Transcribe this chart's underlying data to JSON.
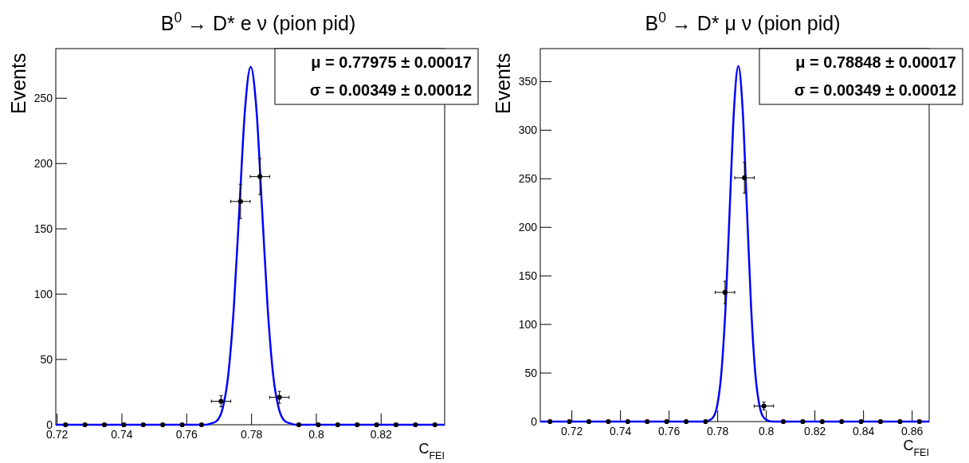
{
  "chart_data": [
    {
      "type": "scatter",
      "title": "B$^{0}$ → D* e ν (pion pid)",
      "xlabel": "C$_{FEI}$",
      "ylabel": "Events",
      "xlim": [
        0.7196,
        0.8396
      ],
      "ylim": [
        0,
        288
      ],
      "xticks": [
        0.72,
        0.74,
        0.76,
        0.78,
        {
          "value": 0.8,
          "label": "0.8"
        },
        0.82
      ],
      "yticks": [
        0,
        50,
        100,
        150,
        200,
        250
      ],
      "grid": false,
      "marker": "circle",
      "annotations": [
        "μ =  0.77975 ± 0.00017",
        "σ =  0.00349 ± 0.00012"
      ],
      "series": [
        {
          "color": "#000000",
          "x": [
            0.7226,
            0.7286,
            0.7346,
            0.7406,
            0.7466,
            0.7526,
            0.7586,
            0.7646,
            0.7706,
            0.7766,
            0.7826,
            0.7886,
            0.7946,
            0.8006,
            0.8066,
            0.8126,
            0.8186,
            0.8246,
            0.8306,
            0.8366
          ],
          "values": [
            0,
            0,
            0,
            0,
            0,
            0,
            0,
            0,
            18,
            171,
            190,
            21,
            0,
            0,
            0,
            0,
            0,
            0,
            0,
            0
          ],
          "errors": [
            null,
            null,
            null,
            null,
            null,
            null,
            null,
            null,
            4.2,
            13.1,
            13.8,
            4.6,
            null,
            null,
            null,
            null,
            null,
            null,
            null,
            null
          ],
          "xerrors": [
            null,
            null,
            null,
            null,
            null,
            null,
            null,
            null,
            0.003,
            0.003,
            0.003,
            0.003,
            null,
            null,
            null,
            null,
            null,
            null,
            null,
            null
          ]
        },
        {
          "type": "line",
          "marker": "none",
          "color": "#0000ff",
          "x": [
            0.7196,
            0.76579,
            0.76754,
            0.76928,
            0.77103,
            0.77277,
            0.77452,
            0.77626,
            0.77801,
            0.77975,
            0.7815,
            0.78324,
            0.78499,
            0.78673,
            0.78848,
            0.79022,
            0.79197,
            0.79371,
            0.8396
          ],
          "values": [
            0,
            0,
            1,
            3,
            12,
            37,
            89,
            166,
            242,
            274,
            242,
            166,
            89,
            37,
            12,
            3,
            1,
            0,
            0
          ]
        }
      ]
    },
    {
      "type": "scatter",
      "title": "B$^{0}$ → D* μ ν (pion pid)",
      "xlabel": "C$_{FEI}$",
      "ylabel": "Events",
      "xlim": [
        0.707,
        0.867
      ],
      "ylim": [
        0,
        384
      ],
      "xticks": [
        0.72,
        0.74,
        0.76,
        0.78,
        {
          "value": 0.8,
          "label": "0.8"
        },
        0.82,
        0.84,
        0.86
      ],
      "yticks": [
        0,
        50,
        100,
        150,
        200,
        250,
        300,
        350
      ],
      "grid": false,
      "marker": "circle",
      "annotations": [
        "μ =  0.78848 ± 0.00017",
        "σ =  0.00349 ± 0.00012"
      ],
      "series": [
        {
          "color": "#000000",
          "x": [
            0.711,
            0.719,
            0.727,
            0.735,
            0.743,
            0.751,
            0.759,
            0.767,
            0.775,
            0.783,
            0.791,
            0.799,
            0.807,
            0.815,
            0.823,
            0.831,
            0.839,
            0.847,
            0.855,
            0.863
          ],
          "values": [
            0,
            0,
            0,
            0,
            0,
            0,
            0,
            0,
            0,
            133,
            251,
            16,
            0,
            0,
            0,
            0,
            0,
            0,
            0,
            0
          ],
          "errors": [
            null,
            null,
            null,
            null,
            null,
            null,
            null,
            null,
            null,
            11.5,
            15.8,
            4,
            null,
            null,
            null,
            null,
            null,
            null,
            null,
            null
          ],
          "xerrors": [
            null,
            null,
            null,
            null,
            null,
            null,
            null,
            null,
            null,
            0.004,
            0.004,
            0.004,
            null,
            null,
            null,
            null,
            null,
            null,
            null,
            null
          ]
        },
        {
          "type": "line",
          "marker": "none",
          "color": "#0000ff",
          "x": [
            0.707,
            0.77452,
            0.77627,
            0.77801,
            0.77976,
            0.7815,
            0.78325,
            0.78499,
            0.78674,
            0.78848,
            0.79023,
            0.79197,
            0.79372,
            0.79546,
            0.79721,
            0.79895,
            0.8007,
            0.80244,
            0.867
          ],
          "values": [
            0,
            0,
            1,
            4,
            16,
            50,
            119,
            222,
            323,
            366,
            323,
            222,
            119,
            50,
            16,
            4,
            1,
            0,
            0
          ]
        }
      ]
    }
  ]
}
